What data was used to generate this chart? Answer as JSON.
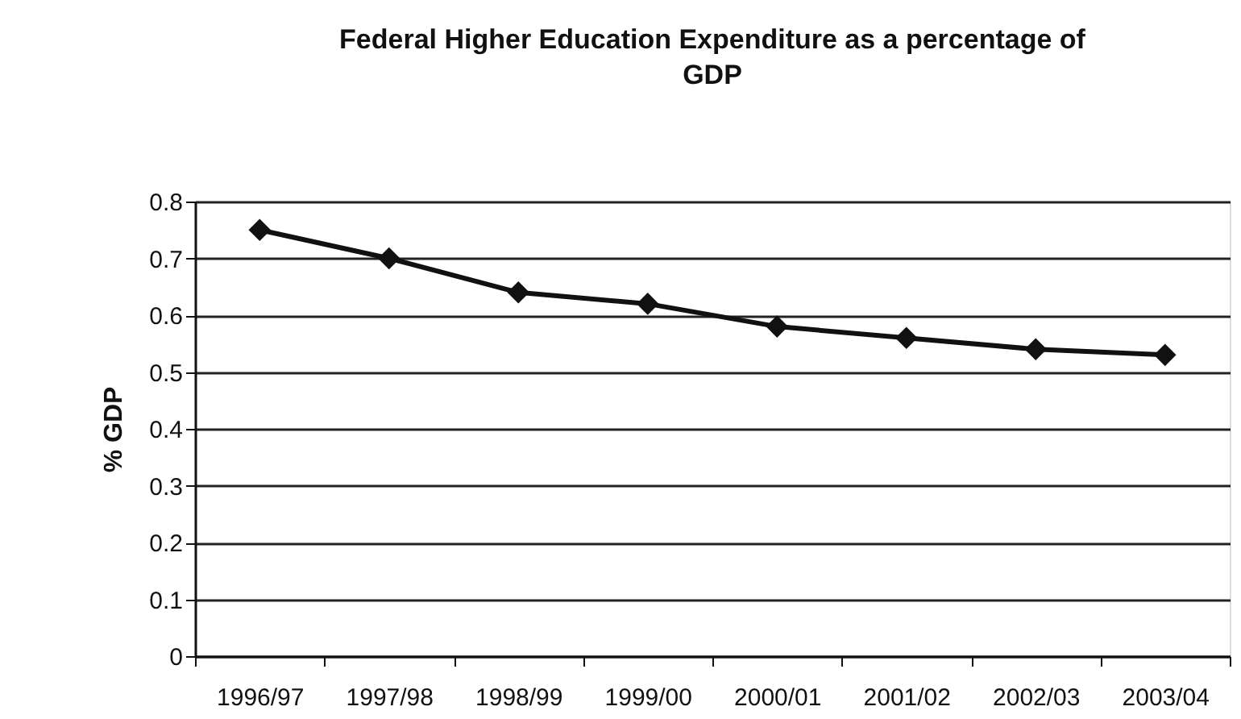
{
  "chart_data": {
    "type": "line",
    "title": "Federal Higher Education Expenditure as a percentage of GDP",
    "ylabel": "% GDP",
    "categories": [
      "1996/97",
      "1997/98",
      "1998/99",
      "1999/00",
      "2000/01",
      "2001/02",
      "2002/03",
      "2003/04"
    ],
    "series": [
      {
        "color": "#111111",
        "values": [
          0.75,
          0.7,
          0.64,
          0.62,
          0.58,
          0.56,
          0.54,
          0.53
        ]
      }
    ],
    "ylim": [
      0,
      0.8
    ],
    "yticks": [
      0,
      0.1,
      0.2,
      0.3,
      0.4,
      0.5,
      0.6,
      0.7,
      0.8
    ],
    "grid": "y",
    "marker": "diamond",
    "line_style": "solid"
  }
}
